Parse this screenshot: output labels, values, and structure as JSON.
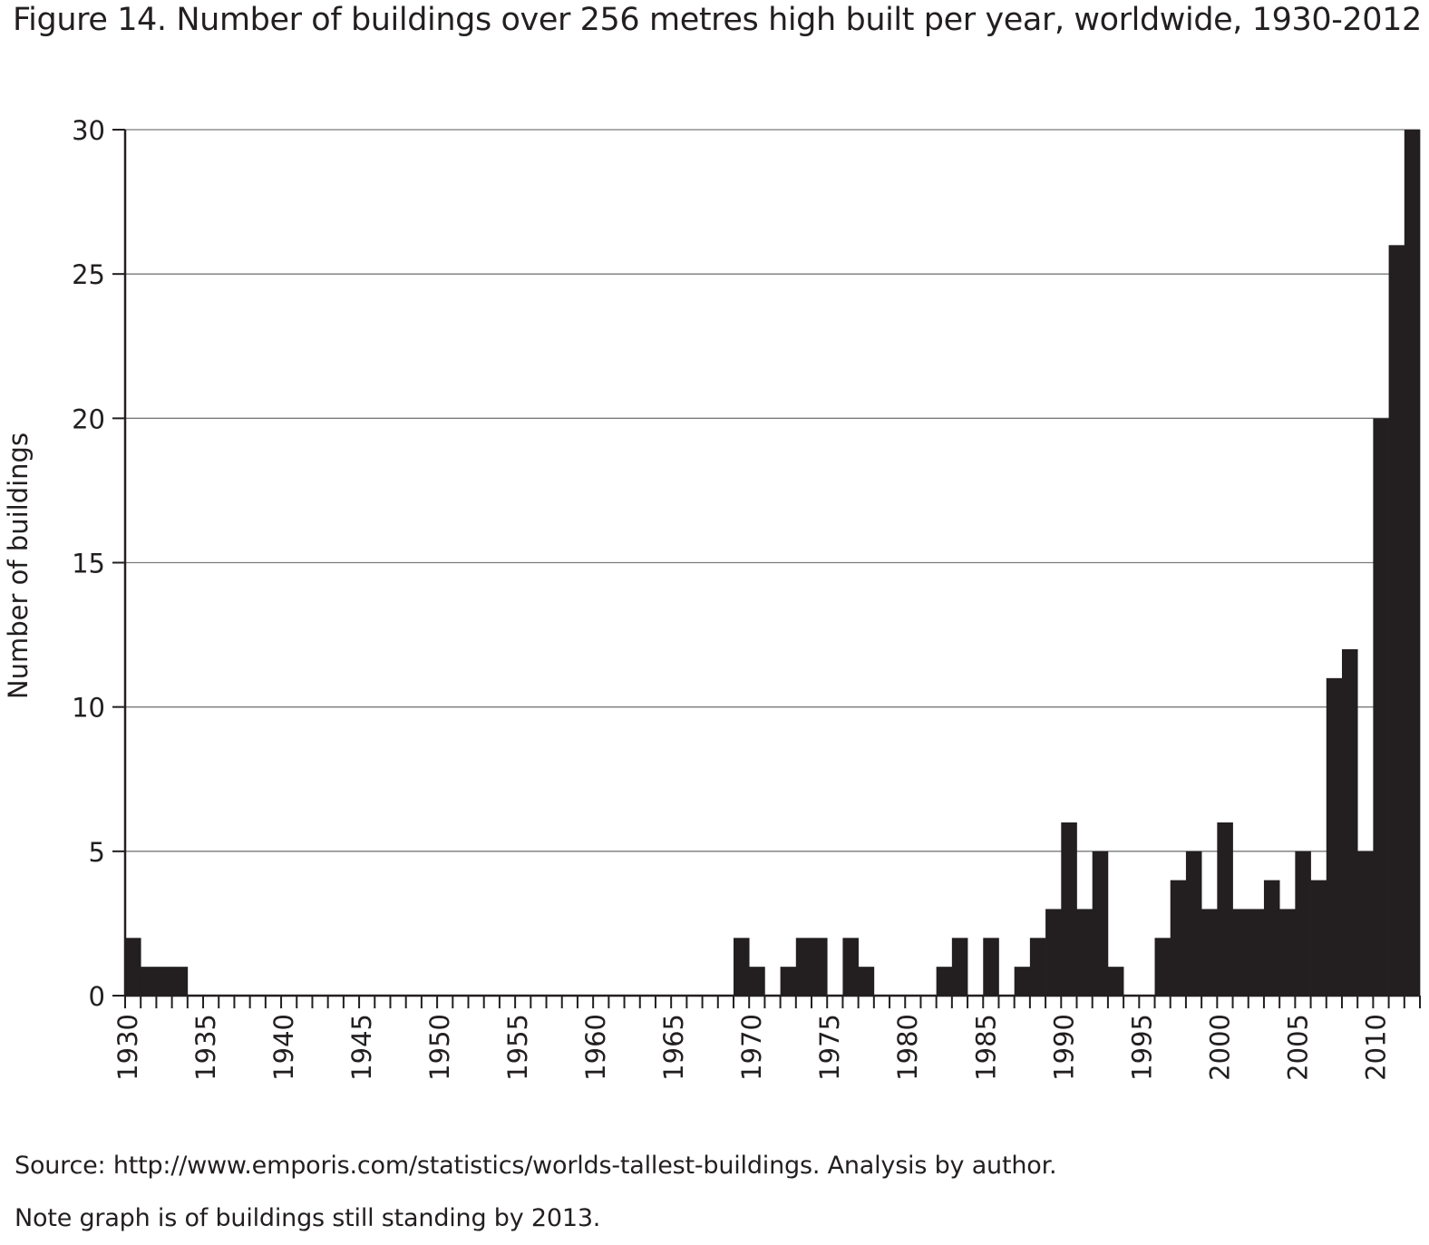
{
  "figure_title": "Figure 14. Number of buildings over 256 metres high built per year, worldwide, 1930-2012",
  "source_note": "Source: http://www.emporis.com/statistics/worlds-tallest-buildings. Analysis by author.",
  "standing_note": "Note graph is of buildings still standing by 2013.",
  "bar_color": "#231f20",
  "grid_color": "#7a7a7a",
  "chart_data": {
    "type": "bar",
    "title": "Figure 14. Number of buildings over 256 metres high built per year, worldwide, 1930-2012",
    "xlabel": "",
    "ylabel": "Number of buildings",
    "x_start": 1930,
    "x_end": 2012,
    "ylim": [
      0,
      30
    ],
    "yticks": [
      0,
      5,
      10,
      15,
      20,
      25,
      30
    ],
    "xtick_labels": [
      "1930",
      "1935",
      "1940",
      "1945",
      "1950",
      "1955",
      "1960",
      "1965",
      "1970",
      "1975",
      "1980",
      "1985",
      "1990",
      "1995",
      "2000",
      "2005",
      "2010"
    ],
    "grid": "horizontal",
    "years": [
      1930,
      1931,
      1932,
      1933,
      1934,
      1935,
      1936,
      1937,
      1938,
      1939,
      1940,
      1941,
      1942,
      1943,
      1944,
      1945,
      1946,
      1947,
      1948,
      1949,
      1950,
      1951,
      1952,
      1953,
      1954,
      1955,
      1956,
      1957,
      1958,
      1959,
      1960,
      1961,
      1962,
      1963,
      1964,
      1965,
      1966,
      1967,
      1968,
      1969,
      1970,
      1971,
      1972,
      1973,
      1974,
      1975,
      1976,
      1977,
      1978,
      1979,
      1980,
      1981,
      1982,
      1983,
      1984,
      1985,
      1986,
      1987,
      1988,
      1989,
      1990,
      1991,
      1992,
      1993,
      1994,
      1995,
      1996,
      1997,
      1998,
      1999,
      2000,
      2001,
      2002,
      2003,
      2004,
      2005,
      2006,
      2007,
      2008,
      2009,
      2010,
      2011,
      2012
    ],
    "values": [
      2,
      1,
      1,
      1,
      0,
      0,
      0,
      0,
      0,
      0,
      0,
      0,
      0,
      0,
      0,
      0,
      0,
      0,
      0,
      0,
      0,
      0,
      0,
      0,
      0,
      0,
      0,
      0,
      0,
      0,
      0,
      0,
      0,
      0,
      0,
      0,
      0,
      0,
      0,
      2,
      1,
      0,
      1,
      2,
      2,
      0,
      2,
      1,
      0,
      0,
      0,
      0,
      1,
      2,
      0,
      2,
      0,
      1,
      2,
      3,
      6,
      3,
      5,
      1,
      0,
      0,
      2,
      4,
      5,
      3,
      6,
      3,
      3,
      4,
      3,
      5,
      4,
      11,
      12,
      5,
      20,
      26,
      30
    ]
  }
}
